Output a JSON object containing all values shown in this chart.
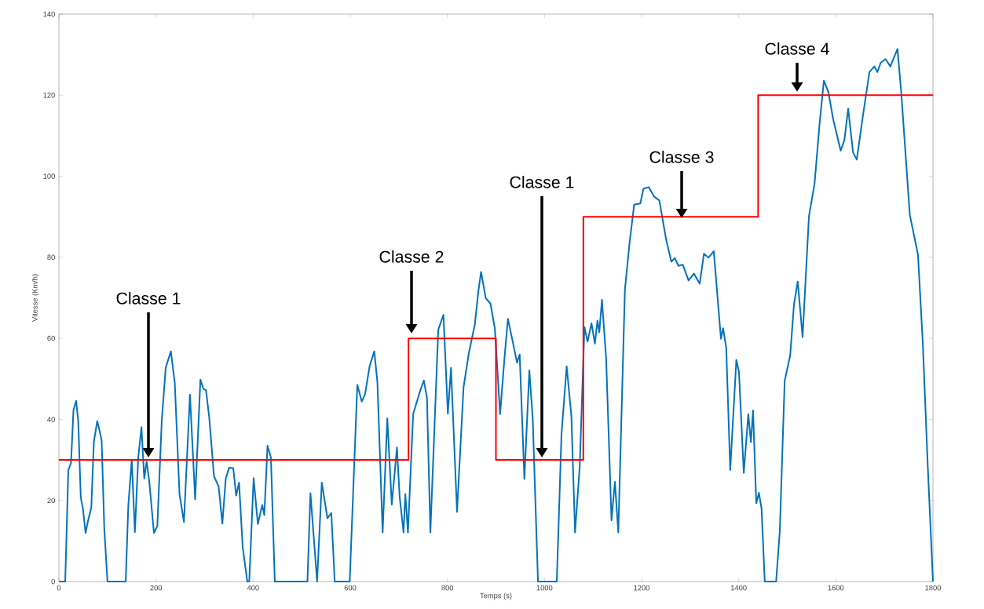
{
  "chart_data": {
    "type": "line",
    "xlabel": "Temps (s)",
    "ylabel": "Vitesse (Km/h)",
    "xlim": [
      0,
      1800
    ],
    "ylim": [
      0,
      140
    ],
    "xticks": [
      0,
      200,
      400,
      600,
      800,
      1000,
      1200,
      1400,
      1600,
      1800
    ],
    "yticks": [
      0,
      20,
      40,
      60,
      80,
      100,
      120,
      140
    ],
    "series": [
      {
        "color": "#0072bd",
        "x": [
          0,
          13,
          19.4,
          25,
          30,
          35.5,
          39.8,
          45,
          49.5,
          55,
          60,
          66.7,
          72,
          79,
          84,
          88,
          93.5,
          100,
          137.6,
          143,
          150,
          156.5,
          163.4,
          170,
          175.8,
          180.6,
          186,
          195.7,
          202.7,
          211.8,
          220,
          230.6,
          238.7,
          248.4,
          257.5,
          269.9,
          280.6,
          291.4,
          297.8,
          303,
          309.7,
          319.4,
          329,
          336.6,
          343.6,
          350.5,
          359,
          365,
          371,
          378.5,
          388,
          392,
          401,
          409.7,
          418.8,
          423,
          429.6,
          436.6,
          444.6,
          511.8,
          518,
          531.7,
          541.4,
          553,
          561,
          568,
          598.9,
          614.5,
          623.7,
          630.6,
          639.8,
          649.5,
          655.9,
          666.7,
          676.3,
          685.5,
          696.2,
          701.6,
          709.7,
          713.4,
          718.8,
          729.6,
          744.6,
          751.6,
          758,
          765,
          781.2,
          791.9,
          801,
          807.5,
          819.9,
          833.3,
          844.1,
          856.5,
          864,
          869.4,
          879,
          888.7,
          897.8,
          908.6,
          917.7,
          924.7,
          932.8,
          943.5,
          948.9,
          958.6,
          968.8,
          975.8,
          986.6,
          1025.3,
          1035,
          1045.7,
          1055.4,
          1062.9,
          1072.6,
          1082.3,
          1088.7,
          1096.8,
          1103.8,
          1109.1,
          1112.9,
          1118.3,
          1127,
          1138,
          1145,
          1152,
          1165.6,
          1175.4,
          1184.7,
          1197.3,
          1203.8,
          1214.8,
          1225.7,
          1236.6,
          1250.3,
          1261.2,
          1268.3,
          1276,
          1284.7,
          1296.7,
          1307.7,
          1319.7,
          1328.4,
          1337.7,
          1348.6,
          1363.4,
          1367.8,
          1374.3,
          1382.5,
          1395.1,
          1400.5,
          1410.4,
          1419.7,
          1425.1,
          1429.5,
          1436.1,
          1441.5,
          1447,
          1453.6,
          1477,
          1484.6,
          1494.6,
          1506,
          1513.8,
          1521.5,
          1531.5,
          1544.6,
          1556.2,
          1566.2,
          1575.4,
          1584.6,
          1594.6,
          1610,
          1617.7,
          1625.4,
          1635.4,
          1643.1,
          1656.2,
          1669.2,
          1679.2,
          1685.4,
          1692.3,
          1702.3,
          1712.3,
          1726.9,
          1734.6,
          1752.3,
          1769.2,
          1779.2,
          1789.2,
          1800
        ],
        "values": [
          0,
          0,
          27.4,
          29.3,
          42.3,
          44.6,
          39.7,
          20.8,
          17.9,
          12,
          15,
          18.2,
          34.5,
          39.6,
          37.1,
          34.8,
          13,
          0,
          0,
          18.9,
          30,
          12.2,
          30.6,
          38.1,
          25.4,
          29.6,
          24.8,
          12,
          13.7,
          39.7,
          52.8,
          56.8,
          48.9,
          21.5,
          14.7,
          46.1,
          20.3,
          49.8,
          47.5,
          47.2,
          40.3,
          26,
          23.4,
          14.3,
          25.4,
          28.1,
          28,
          21.2,
          24.4,
          8.5,
          0,
          0,
          25.5,
          14.2,
          18.9,
          16.4,
          33.5,
          30.6,
          0,
          0,
          21.8,
          0,
          24.4,
          15.6,
          16.9,
          0,
          0,
          48.5,
          44.4,
          46.3,
          53.1,
          56.8,
          49.2,
          12.1,
          40.3,
          19,
          33.1,
          21.1,
          12.1,
          21.6,
          12.1,
          41.4,
          47.3,
          49.6,
          45.3,
          12.1,
          62.1,
          65.8,
          41.4,
          52.7,
          17.2,
          47.9,
          56.3,
          63.4,
          71.8,
          76.4,
          69.9,
          68.6,
          62.4,
          41.3,
          55.3,
          64.8,
          60.2,
          54,
          56,
          25.3,
          52.1,
          40.2,
          0,
          0,
          36.3,
          53.1,
          40.8,
          12.1,
          28.5,
          62.8,
          59.2,
          63.7,
          58.7,
          64.4,
          61.5,
          69.5,
          55,
          15.1,
          24.6,
          12.1,
          72,
          83.8,
          93,
          93.3,
          96.9,
          97.3,
          95,
          94,
          84.5,
          78.9,
          79.8,
          77.9,
          78.2,
          74.3,
          76,
          73.5,
          80.9,
          79.9,
          81.5,
          59.9,
          62.5,
          57.6,
          27.5,
          54.7,
          51.7,
          26.8,
          41.3,
          34.4,
          42.2,
          19.3,
          21.9,
          18,
          0,
          0,
          12.5,
          49.5,
          55.8,
          68.4,
          74,
          60.3,
          90.1,
          98.2,
          112.6,
          123.6,
          120.8,
          114,
          106.3,
          109,
          116.7,
          105.9,
          104.1,
          115.3,
          125.7,
          127.1,
          125.7,
          128,
          128.9,
          127.1,
          131.4,
          120.8,
          90.5,
          80.6,
          58.5,
          28.7,
          0
        ]
      },
      {
        "type": "step",
        "color": "#ff0000",
        "x": [
          0,
          720,
          900,
          1080,
          1440,
          1800
        ],
        "values": [
          30,
          60,
          30,
          90,
          120,
          120
        ]
      }
    ],
    "annotations": [
      "Classe 1",
      "Classe 2",
      "Classe 1",
      "Classe 3",
      "Classe 4"
    ]
  }
}
